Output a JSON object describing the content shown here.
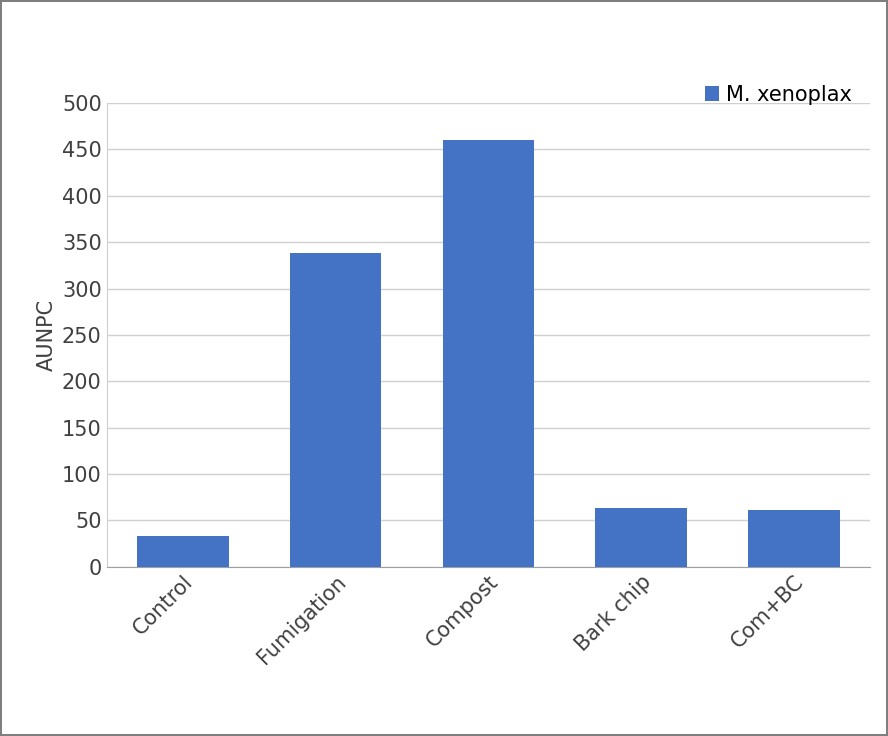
{
  "chart_data": {
    "type": "bar",
    "y_label": "AUNPC",
    "categories": [
      "Control",
      "Fumigation",
      "Compost",
      "Bark chip",
      "Com+BC"
    ],
    "series": [
      {
        "name": "M. xenoplax",
        "color": "#4472c4",
        "values": [
          33,
          338,
          460,
          63,
          61
        ]
      }
    ],
    "ylim": [
      0,
      500
    ],
    "yticks": [
      0,
      50,
      100,
      150,
      200,
      250,
      300,
      350,
      400,
      450,
      500
    ],
    "grid": true,
    "legend": "upper right"
  }
}
